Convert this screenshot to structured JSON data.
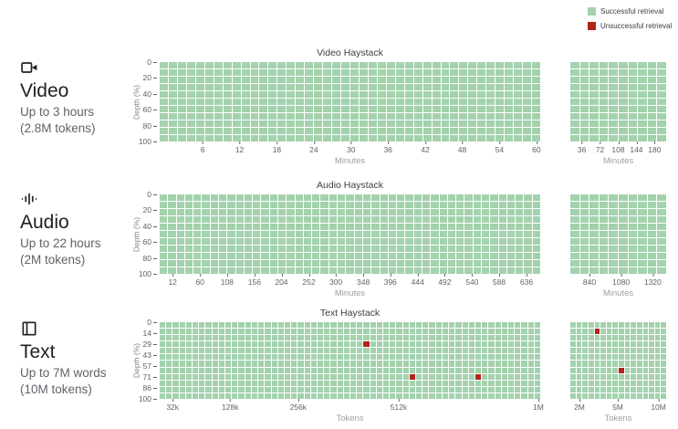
{
  "legend": {
    "items": [
      {
        "label": "Successful retrieval",
        "color": "#a3d2ad"
      },
      {
        "label": "Unsuccessful retrieval",
        "color": "#b3231a"
      }
    ]
  },
  "sections": [
    {
      "icon": "video-camera-icon",
      "title": "Video",
      "line1": "Up to 3 hours",
      "line2": "(2.8M tokens)"
    },
    {
      "icon": "audio-waveform-icon",
      "title": "Audio",
      "line1": "Up to 22 hours",
      "line2": "(2M tokens)"
    },
    {
      "icon": "book-icon",
      "title": "Text",
      "line1": "Up to 7M words",
      "line2": "(10M tokens)"
    }
  ],
  "chart_data": [
    {
      "type": "heatmap",
      "title": "Video Haystack",
      "ylabel": "Depth (%)",
      "yticks": [
        "0",
        "20",
        "40",
        "60",
        "80",
        "100"
      ],
      "legend_entries": [
        "Successful retrieval",
        "Unsuccessful retrieval"
      ],
      "main": {
        "xlabel": "Minutes",
        "cols": 42,
        "rows": 11,
        "xticks": [
          "6",
          "12",
          "18",
          "24",
          "30",
          "36",
          "42",
          "48",
          "54",
          "60"
        ],
        "xtick_pos": [
          11.3,
          21,
          30.8,
          40.5,
          50.3,
          60,
          69.8,
          79.5,
          89.3,
          99
        ],
        "red_cells": []
      },
      "overflow": {
        "xlabel": "Minutes",
        "cols": 10,
        "rows": 11,
        "xticks": [
          "36",
          "72",
          "108",
          "144",
          "180"
        ],
        "xtick_pos": [
          12,
          31,
          50,
          69,
          88
        ],
        "red_cells": []
      }
    },
    {
      "type": "heatmap",
      "title": "Audio Haystack",
      "ylabel": "Depth (%)",
      "yticks": [
        "0",
        "20",
        "40",
        "60",
        "80",
        "100"
      ],
      "legend_entries": [
        "Successful retrieval",
        "Unsuccessful retrieval"
      ],
      "main": {
        "xlabel": "Minutes",
        "cols": 45,
        "rows": 11,
        "xticks": [
          "12",
          "60",
          "108",
          "156",
          "204",
          "252",
          "300",
          "348",
          "396",
          "444",
          "492",
          "540",
          "588",
          "636"
        ],
        "xtick_pos": [
          3.4,
          10.6,
          17.7,
          24.9,
          32.0,
          39.2,
          46.3,
          53.5,
          60.6,
          67.8,
          74.9,
          82.1,
          89.2,
          96.4
        ],
        "red_cells": []
      },
      "overflow": {
        "xlabel": "Minutes",
        "cols": 10,
        "rows": 11,
        "xticks": [
          "840",
          "1080",
          "1320"
        ],
        "xtick_pos": [
          20,
          53,
          86
        ],
        "red_cells": []
      }
    },
    {
      "type": "heatmap",
      "title": "Text Haystack",
      "ylabel": "Depth (%)",
      "yticks": [
        "0",
        "14",
        "29",
        "43",
        "57",
        "71",
        "86",
        "100"
      ],
      "legend_entries": [
        "Successful retrieval",
        "Unsuccessful retrieval"
      ],
      "main": {
        "xlabel": "Tokens",
        "cols": 58,
        "rows": 12,
        "xticks": [
          "32k",
          "128k",
          "256k",
          "512k",
          "1M"
        ],
        "xtick_pos": [
          3.4,
          18.5,
          36.4,
          62.8,
          99.5
        ],
        "red_cells": [
          [
            31,
            3
          ],
          [
            38,
            8
          ],
          [
            48,
            8
          ]
        ]
      },
      "overflow": {
        "xlabel": "Tokens",
        "cols": 16,
        "rows": 12,
        "xticks": [
          "2M",
          "5M",
          "10M"
        ],
        "xtick_pos": [
          9.5,
          49.5,
          92
        ],
        "red_cells": [
          [
            4,
            1
          ],
          [
            8,
            7
          ]
        ]
      }
    }
  ]
}
